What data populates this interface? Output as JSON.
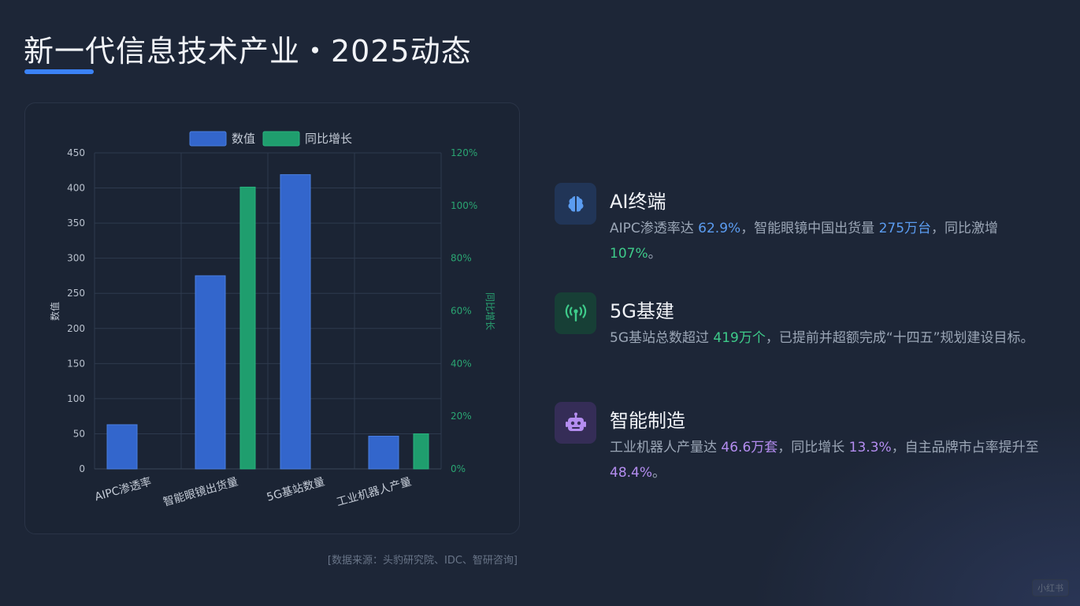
{
  "title": "新一代信息技术产业・2025动态",
  "source": "[数据来源：头豹研究院、IDC、智研咨询]",
  "watermark": "小红书",
  "chart_data": {
    "type": "bar",
    "categories": [
      "AIPC渗透率",
      "智能眼镜出货量",
      "5G基站数量",
      "工业机器人产量"
    ],
    "series": [
      {
        "name": "数值",
        "axis": "left",
        "color": "#3366cc",
        "values": [
          62.9,
          275,
          419,
          46.6
        ]
      },
      {
        "name": "同比增长",
        "axis": "right",
        "color": "#1f9e6e",
        "values": [
          null,
          107,
          null,
          13.3
        ]
      }
    ],
    "ylabel": "数值",
    "y2label": "同比增长",
    "ylim": [
      0,
      450
    ],
    "y2lim": [
      0,
      120
    ],
    "yticks": [
      "0",
      "50",
      "100",
      "150",
      "200",
      "250",
      "300",
      "350",
      "400",
      "450"
    ],
    "y2ticks": [
      "0%",
      "20%",
      "40%",
      "60%",
      "80%",
      "100%",
      "120%"
    ],
    "legend": "top",
    "grid": true
  },
  "items": [
    {
      "icon": "brain-icon",
      "icon_color": "#5b9cf0",
      "head": "AI终端",
      "parts": [
        {
          "t": "AIPC渗透率达 "
        },
        {
          "t": "62.9%",
          "c": "hl-blue"
        },
        {
          "t": "，智能眼镜中国出货量 "
        },
        {
          "t": "275万台",
          "c": "hl-blue"
        },
        {
          "t": "，同比激增 "
        },
        {
          "t": "107%",
          "c": "hl-green"
        },
        {
          "t": "。"
        }
      ]
    },
    {
      "icon": "antenna-icon",
      "icon_color": "#3ecb8a",
      "head": "5G基建",
      "parts": [
        {
          "t": "5G基站总数超过 "
        },
        {
          "t": "419万个",
          "c": "hl-green"
        },
        {
          "t": "，已提前并超额完成“十四五”规划建设目标。"
        }
      ]
    },
    {
      "icon": "robot-icon",
      "icon_color": "#b48df0",
      "head": "智能制造",
      "parts": [
        {
          "t": "工业机器人产量达 "
        },
        {
          "t": "46.6万套",
          "c": "hl-purple"
        },
        {
          "t": "，同比增长 "
        },
        {
          "t": "13.3%",
          "c": "hl-purple"
        },
        {
          "t": "，自主品牌市占率提升至 "
        },
        {
          "t": "48.4%",
          "c": "hl-purple"
        },
        {
          "t": "。"
        }
      ]
    }
  ]
}
